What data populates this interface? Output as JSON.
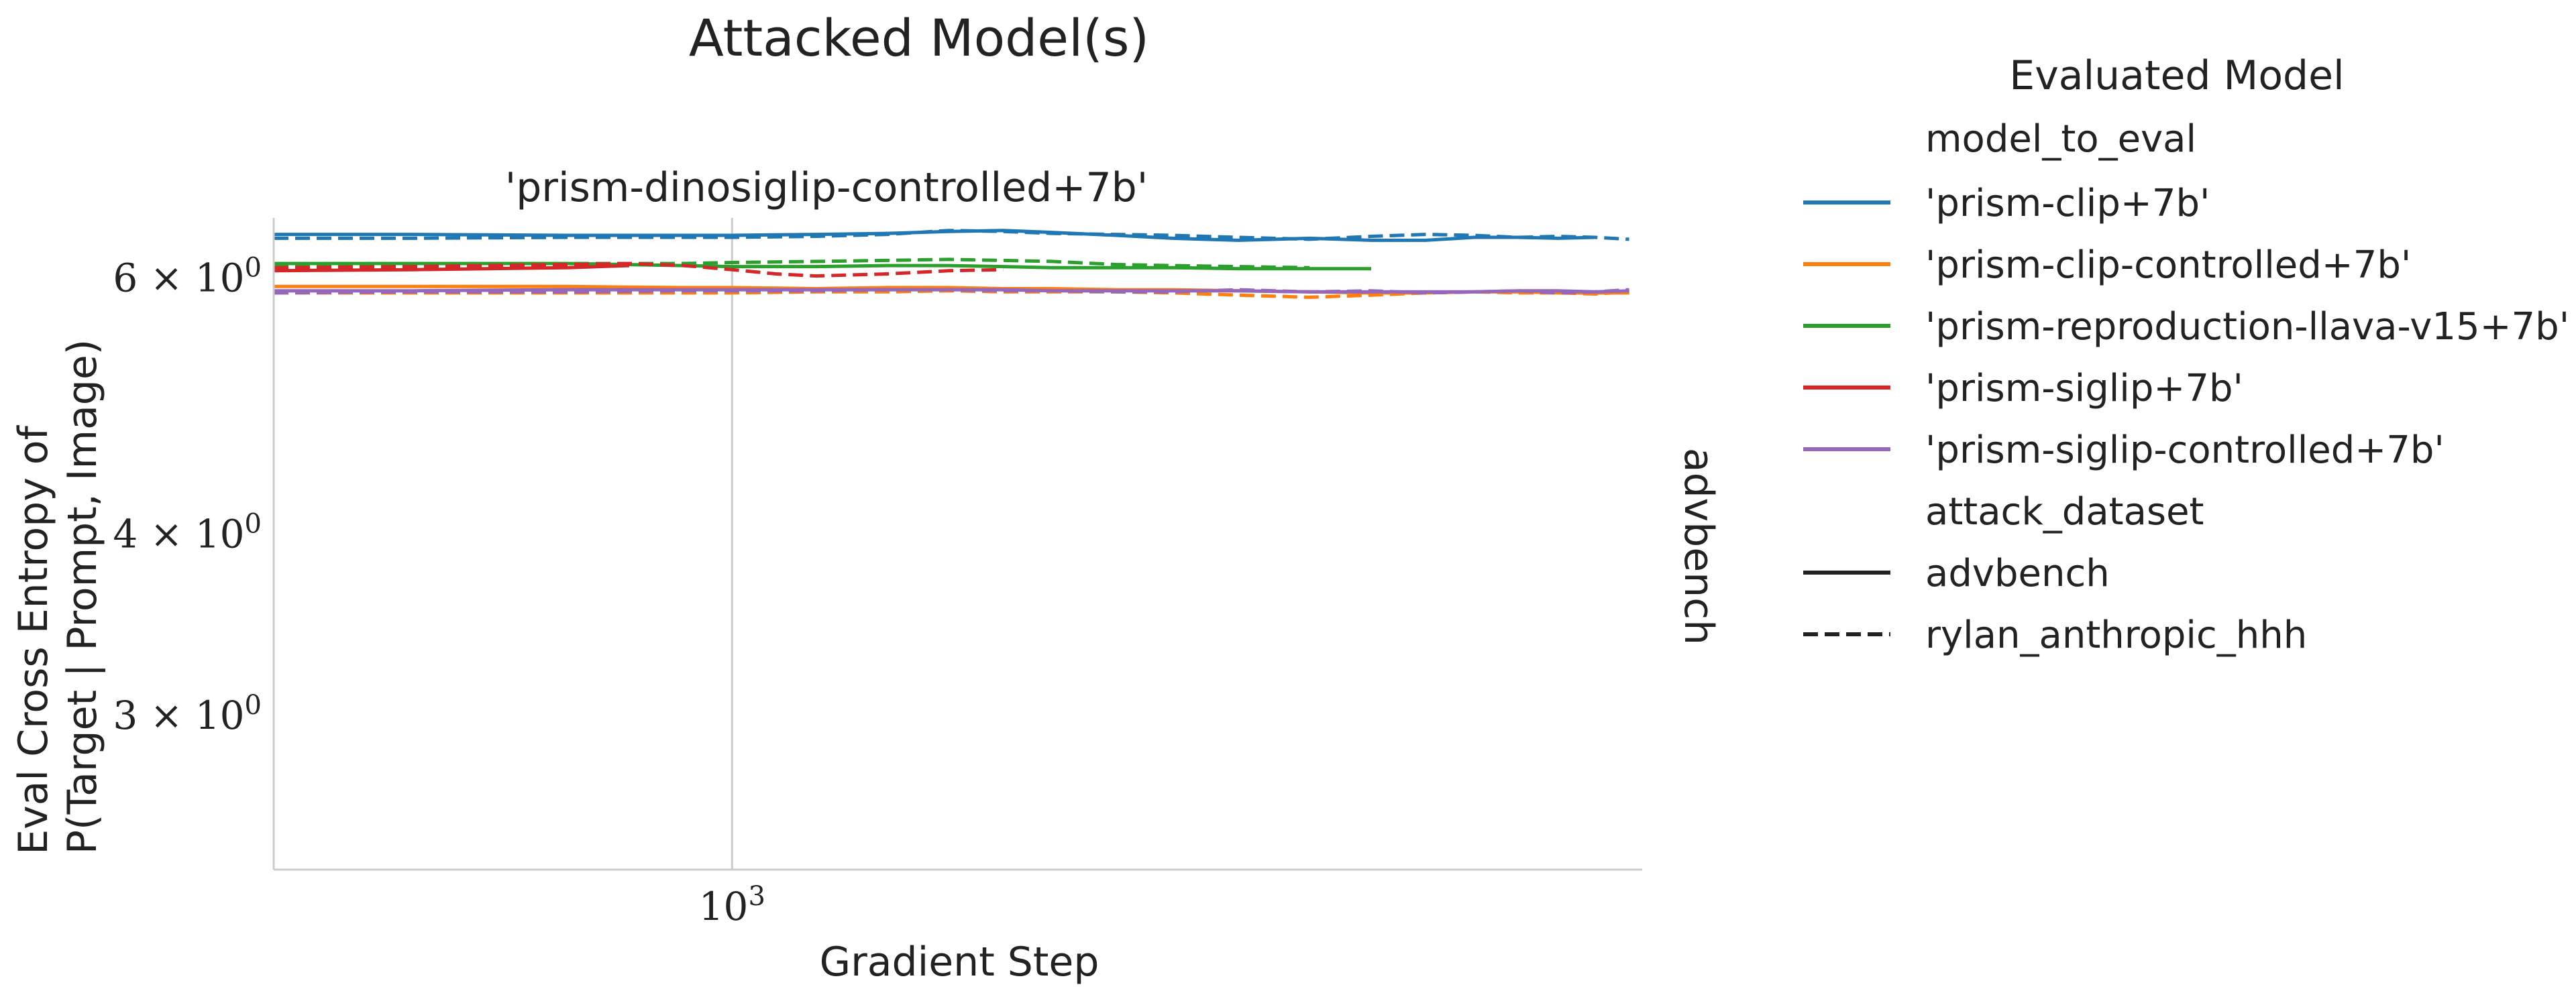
{
  "figure": {
    "suptitle": "Attacked Model(s)",
    "row_label": "advbench"
  },
  "legend": {
    "title": "Evaluated Model",
    "hue_header": "model_to_eval",
    "style_header": "attack_dataset",
    "hue_entries": [
      {
        "label": "'prism-clip+7b'",
        "color": "#1f77b4"
      },
      {
        "label": "'prism-clip-controlled+7b'",
        "color": "#ff7f0e"
      },
      {
        "label": "'prism-reproduction-llava-v15+7b'",
        "color": "#2ca02c"
      },
      {
        "label": "'prism-siglip+7b'",
        "color": "#d62728"
      },
      {
        "label": "'prism-siglip-controlled+7b'",
        "color": "#9467bd"
      }
    ],
    "style_entries": [
      {
        "label": "advbench",
        "dash": "solid"
      },
      {
        "label": "rylan_anthropic_hhh",
        "dash": "dashed"
      }
    ]
  },
  "chart_data": {
    "type": "line",
    "title": "'prism-dinosiglip-controlled+7b'",
    "xlabel": "Gradient Step",
    "ylabel": [
      "Eval Cross Entropy of",
      "P(Target | Prompt, Image)"
    ],
    "xscale": "log",
    "yscale": "log",
    "xlim": [
      370,
      7200
    ],
    "ylim": [
      2.35,
      6.6
    ],
    "xticks": [
      {
        "value": 1000,
        "base": "10",
        "exp": "3"
      }
    ],
    "yticks": [
      {
        "value": 6,
        "mant": "6",
        "base": "10",
        "exp": "0"
      },
      {
        "value": 4,
        "mant": "4",
        "base": "10",
        "exp": "0"
      },
      {
        "value": 3,
        "mant": "3",
        "base": "10",
        "exp": "0"
      }
    ],
    "grid": "x-major",
    "legend_position": "right",
    "series": [
      {
        "name": "'prism-clip+7b'",
        "color": "#1f77b4",
        "dash": "solid",
        "x": [
          370,
          500,
          700,
          900,
          1000,
          1200,
          1400,
          1600,
          1800,
          2000,
          2300,
          2600,
          3000,
          3500,
          4000,
          4500,
          5000,
          5500,
          6000,
          6500
        ],
        "y": [
          6.43,
          6.43,
          6.42,
          6.42,
          6.42,
          6.43,
          6.44,
          6.46,
          6.47,
          6.45,
          6.42,
          6.39,
          6.37,
          6.39,
          6.37,
          6.37,
          6.4,
          6.4,
          6.39,
          6.4
        ]
      },
      {
        "name": "'prism-clip+7b'",
        "color": "#1f77b4",
        "dash": "dashed",
        "x": [
          370,
          500,
          700,
          900,
          1000,
          1200,
          1400,
          1600,
          1800,
          2000,
          2300,
          2600,
          3000,
          3500,
          4000,
          4500,
          5000,
          5500,
          6000,
          6500,
          7000
        ],
        "y": [
          6.39,
          6.39,
          6.4,
          6.4,
          6.4,
          6.41,
          6.43,
          6.47,
          6.46,
          6.44,
          6.43,
          6.42,
          6.4,
          6.38,
          6.41,
          6.43,
          6.42,
          6.4,
          6.41,
          6.4,
          6.38
        ]
      },
      {
        "name": "'prism-clip-controlled+7b'",
        "color": "#ff7f0e",
        "dash": "solid",
        "x": [
          370,
          500,
          700,
          900,
          1000,
          1200,
          1400,
          1600,
          1800,
          2000,
          2300,
          2600,
          3000,
          3500,
          4000,
          4500,
          5000,
          5500,
          6000,
          6500,
          7000
        ],
        "y": [
          5.92,
          5.92,
          5.92,
          5.91,
          5.91,
          5.9,
          5.91,
          5.91,
          5.9,
          5.9,
          5.89,
          5.89,
          5.88,
          5.87,
          5.86,
          5.86,
          5.87,
          5.87,
          5.86,
          5.86,
          5.86
        ]
      },
      {
        "name": "'prism-clip-controlled+7b'",
        "color": "#ff7f0e",
        "dash": "dashed",
        "x": [
          370,
          500,
          700,
          900,
          1000,
          1200,
          1400,
          1600,
          1800,
          2000,
          2300,
          2600,
          3000,
          3500,
          4000,
          4500,
          5000,
          5500,
          6000,
          6500,
          7000
        ],
        "y": [
          5.86,
          5.86,
          5.86,
          5.86,
          5.86,
          5.87,
          5.87,
          5.88,
          5.87,
          5.87,
          5.87,
          5.86,
          5.84,
          5.82,
          5.84,
          5.86,
          5.87,
          5.86,
          5.86,
          5.85,
          5.87
        ]
      },
      {
        "name": "'prism-reproduction-llava-v15+7b'",
        "color": "#2ca02c",
        "dash": "solid",
        "x": [
          370,
          500,
          700,
          900,
          1000,
          1200,
          1400,
          1600,
          1800,
          2000,
          2300,
          2600,
          3000,
          3500,
          4000
        ],
        "y": [
          6.14,
          6.14,
          6.14,
          6.12,
          6.11,
          6.11,
          6.12,
          6.12,
          6.11,
          6.1,
          6.1,
          6.1,
          6.09,
          6.09,
          6.09
        ]
      },
      {
        "name": "'prism-reproduction-llava-v15+7b'",
        "color": "#2ca02c",
        "dash": "dashed",
        "x": [
          370,
          500,
          700,
          900,
          1000,
          1200,
          1400,
          1600,
          1800,
          2000,
          2300,
          2600,
          3000,
          3500
        ],
        "y": [
          6.13,
          6.13,
          6.14,
          6.14,
          6.15,
          6.16,
          6.17,
          6.18,
          6.17,
          6.16,
          6.13,
          6.12,
          6.11,
          6.1
        ]
      },
      {
        "name": "'prism-siglip+7b'",
        "color": "#d62728",
        "dash": "solid",
        "x": [
          370,
          500,
          700,
          800
        ],
        "y": [
          6.07,
          6.08,
          6.1,
          6.12
        ]
      },
      {
        "name": "'prism-siglip+7b'",
        "color": "#d62728",
        "dash": "dashed",
        "x": [
          370,
          500,
          700,
          800,
          900,
          1000,
          1100,
          1200,
          1400,
          1600,
          1800
        ],
        "y": [
          6.1,
          6.11,
          6.13,
          6.14,
          6.12,
          6.08,
          6.04,
          6.02,
          6.04,
          6.07,
          6.08
        ]
      },
      {
        "name": "'prism-siglip-controlled+7b'",
        "color": "#9467bd",
        "dash": "solid",
        "x": [
          370,
          500,
          700,
          900,
          1000,
          1200,
          1400,
          1600,
          1800,
          2000,
          2300,
          2600,
          3000,
          3500,
          4000,
          4500,
          5000,
          5500,
          6000,
          6500,
          7000
        ],
        "y": [
          5.88,
          5.88,
          5.89,
          5.89,
          5.89,
          5.89,
          5.89,
          5.89,
          5.89,
          5.88,
          5.88,
          5.88,
          5.88,
          5.87,
          5.87,
          5.87,
          5.87,
          5.88,
          5.88,
          5.87,
          5.88
        ]
      },
      {
        "name": "'prism-siglip-controlled+7b'",
        "color": "#9467bd",
        "dash": "dashed",
        "x": [
          370,
          500,
          700,
          900,
          1000,
          1200,
          1400,
          1600,
          1800,
          2000,
          2300,
          2600,
          3000,
          3500,
          4000,
          4500,
          5000,
          5500,
          6000,
          6500,
          7000
        ],
        "y": [
          5.86,
          5.87,
          5.87,
          5.88,
          5.88,
          5.88,
          5.89,
          5.89,
          5.88,
          5.88,
          5.87,
          5.87,
          5.89,
          5.87,
          5.88,
          5.86,
          5.87,
          5.88,
          5.86,
          5.87,
          5.89
        ]
      }
    ]
  }
}
